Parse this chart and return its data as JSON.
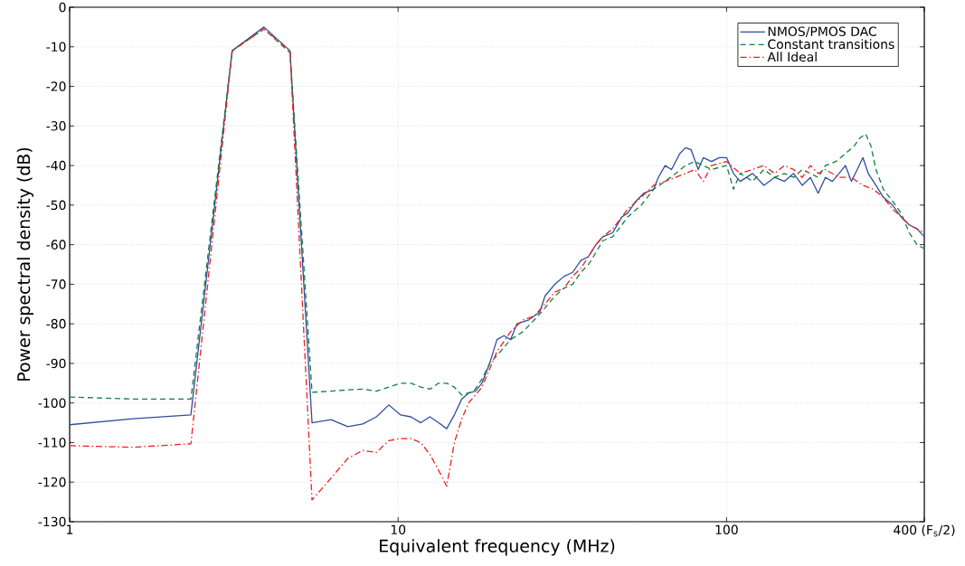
{
  "chart_data": {
    "type": "line",
    "xlabel": "Equivalent frequency (MHz)",
    "ylabel": "Power spectral density (dB)",
    "log": "x",
    "grid": true,
    "legend": "top right",
    "xlim": [
      1,
      400
    ],
    "ylim": [
      -130,
      0
    ],
    "xticks": [
      1,
      10,
      100,
      {
        "value": 400,
        "label": "400 (F$_{s}$/2)"
      }
    ],
    "yticks": [
      -130,
      -120,
      -110,
      -100,
      -90,
      -80,
      -70,
      -60,
      -50,
      -40,
      -30,
      -20,
      -10,
      0
    ],
    "series": [
      {
        "name": "NMOS/PMOS DAC",
        "color": "#2f4ea0",
        "line_style": "solid",
        "x": [
          1,
          1.56,
          2.34,
          3.125,
          3.906,
          4.6875,
          5.47,
          6.25,
          7.03,
          7.81,
          8.59,
          9.375,
          10.16,
          10.94,
          11.72,
          12.5,
          13.28,
          14.06,
          14.84,
          15.63,
          16.4,
          17.19,
          18,
          19,
          20,
          21,
          22,
          23,
          25,
          27,
          28,
          30,
          32,
          34,
          36,
          38,
          40,
          42,
          45,
          48,
          50,
          53,
          56,
          60,
          62,
          65,
          68,
          72,
          75,
          78,
          82,
          85,
          90,
          95,
          100,
          105,
          110,
          120,
          130,
          140,
          150,
          160,
          170,
          180,
          190,
          200,
          210,
          220,
          230,
          240,
          250,
          260,
          270,
          280,
          290,
          300,
          320,
          340,
          360,
          380,
          400
        ],
        "values": [
          -105.5,
          -104,
          -103,
          -11,
          -5,
          -11,
          -105,
          -104.2,
          -106,
          -105.3,
          -103.5,
          -100.5,
          -103,
          -103.5,
          -105,
          -103.5,
          -105,
          -106.5,
          -103,
          -99,
          -97.5,
          -97,
          -95,
          -90,
          -84,
          -83,
          -84,
          -80,
          -79,
          -77,
          -73,
          -70,
          -68,
          -67,
          -64,
          -63,
          -60,
          -58,
          -57,
          -53,
          -52,
          -49,
          -47,
          -46,
          -43,
          -40,
          -41,
          -37,
          -35.5,
          -36,
          -41,
          -38,
          -39,
          -38,
          -38,
          -42,
          -44,
          -42,
          -45,
          -43,
          -44,
          -42,
          -45,
          -43,
          -47,
          -43,
          -44,
          -42,
          -40,
          -44,
          -41,
          -38,
          -42,
          -44,
          -46,
          -48,
          -50,
          -53,
          -55,
          -56,
          -58
        ]
      },
      {
        "name": "Constant transitions",
        "color": "#118040",
        "line_style": "dashed",
        "x": [
          1,
          1.56,
          2.34,
          3.125,
          3.906,
          4.6875,
          5.47,
          6.25,
          7.03,
          7.81,
          8.59,
          9.375,
          10.16,
          10.94,
          11.72,
          12.5,
          13.28,
          14.06,
          14.84,
          15.63,
          17,
          18,
          19,
          20,
          22,
          24,
          26,
          28,
          30,
          32,
          34,
          36,
          38,
          40,
          42,
          45,
          48,
          50,
          55,
          60,
          65,
          70,
          75,
          80,
          90,
          100,
          105,
          110,
          120,
          130,
          140,
          150,
          160,
          170,
          180,
          190,
          200,
          215,
          230,
          245,
          255,
          265,
          275,
          285,
          300,
          320,
          340,
          360,
          380,
          400
        ],
        "values": [
          -98.5,
          -99,
          -99,
          -11,
          -5.5,
          -11.5,
          -97.3,
          -97,
          -96.7,
          -96.5,
          -97,
          -96,
          -95,
          -95,
          -96,
          -96.5,
          -95,
          -95,
          -96,
          -98,
          -97,
          -94,
          -90,
          -88,
          -84,
          -82,
          -79,
          -76,
          -73,
          -71,
          -70,
          -67,
          -65,
          -62,
          -59,
          -58,
          -55,
          -53,
          -50,
          -46,
          -44,
          -42,
          -40,
          -39,
          -41,
          -40,
          -46,
          -42,
          -44,
          -41,
          -43,
          -42,
          -43,
          -41,
          -42,
          -43,
          -40,
          -39,
          -37,
          -35,
          -33,
          -32,
          -35,
          -41,
          -46,
          -49,
          -52,
          -57,
          -60,
          -61
        ]
      },
      {
        "name": "All Ideal",
        "color": "#ee2020",
        "line_style": "dashdot",
        "x": [
          1,
          1.56,
          2.34,
          3.125,
          3.906,
          4.6875,
          5.47,
          6.25,
          7.03,
          7.81,
          8.59,
          9.375,
          10.16,
          10.94,
          11.72,
          12.5,
          13.28,
          14.06,
          14.84,
          15.63,
          16.4,
          18,
          20,
          22,
          24,
          26,
          28,
          30,
          32,
          34,
          36,
          38,
          40,
          42,
          45,
          48,
          50,
          55,
          60,
          65,
          70,
          75,
          80,
          85,
          90,
          100,
          110,
          120,
          130,
          140,
          150,
          160,
          170,
          180,
          190,
          200,
          220,
          240,
          260,
          280,
          300,
          320,
          340,
          360,
          380,
          400
        ],
        "values": [
          -110.8,
          -111.2,
          -110.3,
          -11,
          -5.5,
          -11,
          -124.5,
          -119,
          -114,
          -112,
          -112.5,
          -109.5,
          -109,
          -109,
          -110,
          -113,
          -117,
          -121,
          -110,
          -104,
          -100,
          -96,
          -87,
          -82,
          -79,
          -78,
          -75,
          -72,
          -71,
          -68,
          -66,
          -63,
          -60,
          -58,
          -56,
          -53,
          -51,
          -48,
          -45,
          -44,
          -43,
          -42,
          -41,
          -44,
          -40,
          -39,
          -42,
          -41,
          -40,
          -42,
          -40,
          -41,
          -43,
          -40,
          -42,
          -41,
          -43,
          -43,
          -45,
          -46,
          -48,
          -51,
          -53,
          -55,
          -56,
          -57
        ]
      }
    ]
  }
}
